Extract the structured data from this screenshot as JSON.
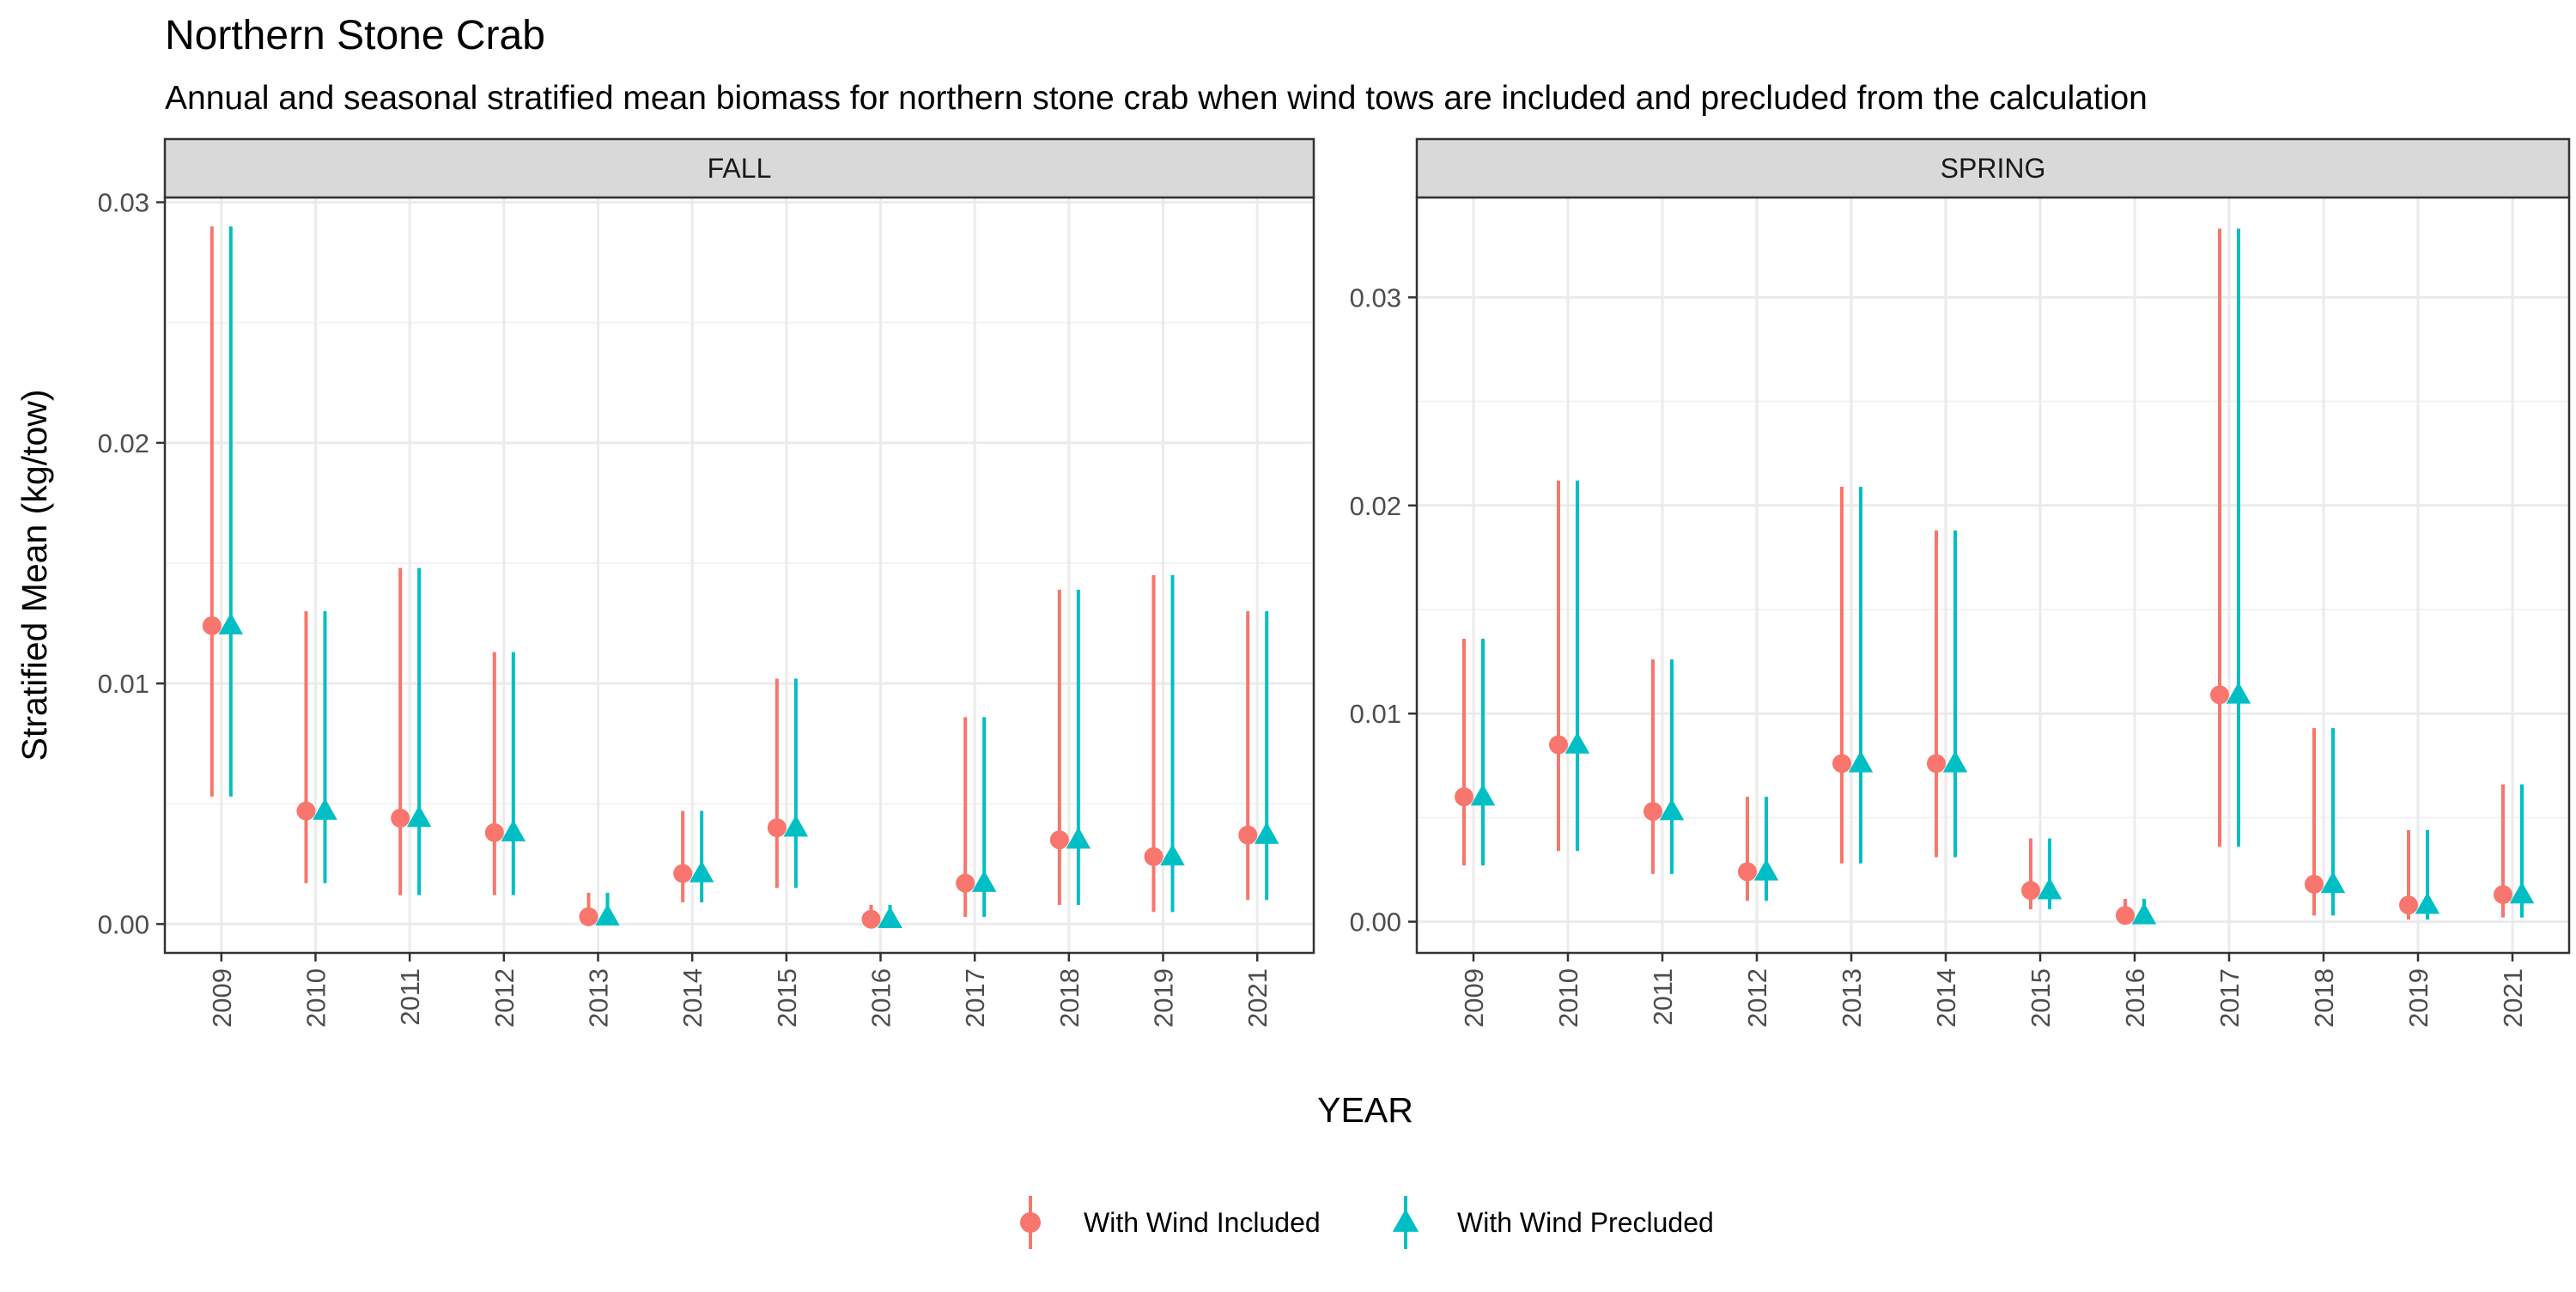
{
  "chart_data": {
    "type": "scatter",
    "title": "Northern Stone Crab",
    "subtitle": "Annual and seasonal stratified mean biomass for northern stone crab when wind tows are included and precluded from the calculation",
    "xlabel": "YEAR",
    "ylabel": "Stratified Mean (kg/tow)",
    "categories": [
      "2009",
      "2010",
      "2011",
      "2012",
      "2013",
      "2014",
      "2015",
      "2016",
      "2017",
      "2018",
      "2019",
      "2021"
    ],
    "legend": {
      "position": "bottom",
      "entries": [
        {
          "name": "With Wind Included",
          "color": "#F8766D",
          "shape": "circle"
        },
        {
          "name": "With Wind Precluded",
          "color": "#00BFC4",
          "shape": "triangle"
        }
      ]
    },
    "grid": true,
    "panels": [
      {
        "title": "FALL",
        "ylim": [
          -0.0012,
          0.0302
        ],
        "yticks": [
          0,
          0.01,
          0.02,
          0.03
        ],
        "ytick_labels": [
          "0.00",
          "0.01",
          "0.02",
          "0.03"
        ],
        "series": [
          {
            "name": "With Wind Included",
            "values": [
              0.0124,
              0.0047,
              0.0044,
              0.0038,
              0.0003,
              0.0021,
              0.004,
              0.0002,
              0.0017,
              0.0035,
              0.0028,
              0.0037
            ],
            "lower": [
              0.0053,
              0.0017,
              0.0012,
              0.0012,
              0.0,
              0.0009,
              0.0015,
              0.0,
              0.0003,
              0.0008,
              0.0005,
              0.001
            ],
            "upper": [
              0.029,
              0.013,
              0.0148,
              0.0113,
              0.0013,
              0.0047,
              0.0102,
              0.0008,
              0.0086,
              0.0139,
              0.0145,
              0.013
            ]
          },
          {
            "name": "With Wind Precluded",
            "values": [
              0.0124,
              0.0047,
              0.0044,
              0.0038,
              0.0003,
              0.0021,
              0.004,
              0.0002,
              0.0017,
              0.0035,
              0.0028,
              0.0037
            ],
            "lower": [
              0.0053,
              0.0017,
              0.0012,
              0.0012,
              0.0,
              0.0009,
              0.0015,
              0.0,
              0.0003,
              0.0008,
              0.0005,
              0.001
            ],
            "upper": [
              0.029,
              0.013,
              0.0148,
              0.0113,
              0.0013,
              0.0047,
              0.0102,
              0.0008,
              0.0086,
              0.0139,
              0.0145,
              0.013
            ]
          }
        ]
      },
      {
        "title": "SPRING",
        "ylim": [
          -0.0015,
          0.0348
        ],
        "yticks": [
          0,
          0.01,
          0.02,
          0.03
        ],
        "ytick_labels": [
          "0.00",
          "0.01",
          "0.02",
          "0.03"
        ],
        "series": [
          {
            "name": "With Wind Included",
            "values": [
              0.006,
              0.0085,
              0.0053,
              0.0024,
              0.0076,
              0.0076,
              0.0015,
              0.0003,
              0.0109,
              0.0018,
              0.0008,
              0.0013
            ],
            "lower": [
              0.0027,
              0.0034,
              0.0023,
              0.001,
              0.0028,
              0.0031,
              0.0006,
              0.0,
              0.0036,
              0.0003,
              0.0001,
              0.0002
            ],
            "upper": [
              0.0136,
              0.0212,
              0.0126,
              0.006,
              0.0209,
              0.0188,
              0.004,
              0.0011,
              0.0333,
              0.0093,
              0.0044,
              0.0066
            ]
          },
          {
            "name": "With Wind Precluded",
            "values": [
              0.006,
              0.0085,
              0.0053,
              0.0024,
              0.0076,
              0.0076,
              0.0015,
              0.0003,
              0.0109,
              0.0018,
              0.0008,
              0.0013
            ],
            "lower": [
              0.0027,
              0.0034,
              0.0023,
              0.001,
              0.0028,
              0.0031,
              0.0006,
              0.0,
              0.0036,
              0.0003,
              0.0001,
              0.0002
            ],
            "upper": [
              0.0136,
              0.0212,
              0.0126,
              0.006,
              0.0209,
              0.0188,
              0.004,
              0.0011,
              0.0333,
              0.0093,
              0.0044,
              0.0066
            ]
          }
        ]
      }
    ]
  }
}
